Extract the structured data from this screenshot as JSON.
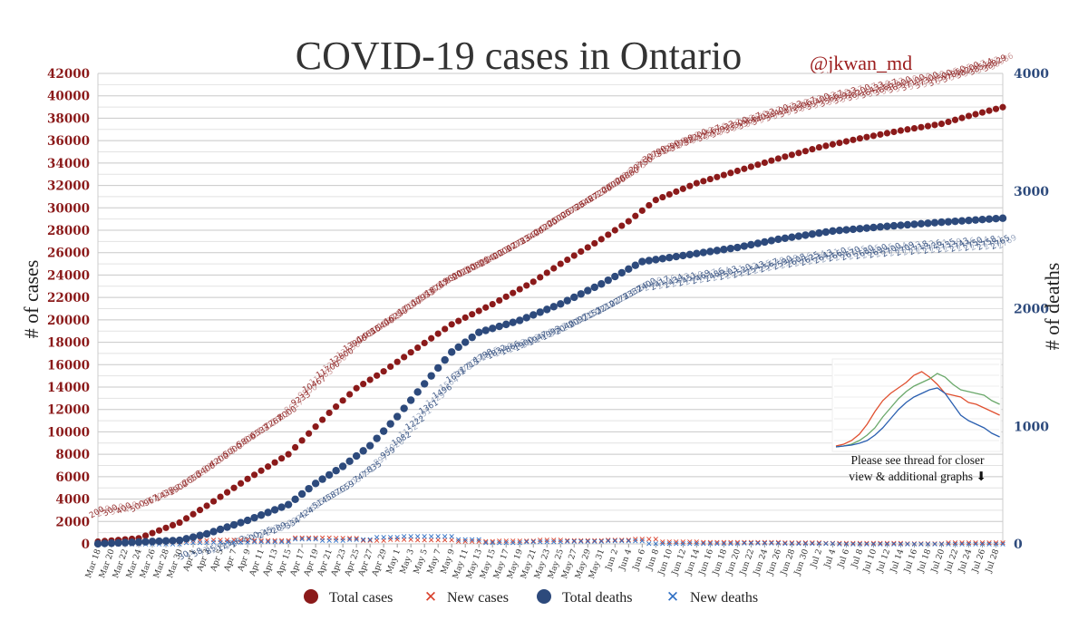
{
  "chart_data": {
    "type": "line",
    "title": "COVID-19 cases in Ontario",
    "handle": "@jkwan_md",
    "ylabel_left": "# of cases",
    "ylabel_right": "# of deaths",
    "ylim_left": [
      0,
      42000
    ],
    "ylim_right": [
      0,
      4000
    ],
    "yticks_left": [
      "0",
      "2000",
      "4000",
      "6000",
      "8000",
      "10000",
      "12000",
      "14000",
      "16000",
      "18000",
      "20000",
      "22000",
      "24000",
      "26000",
      "28000",
      "30000",
      "32000",
      "34000",
      "36000",
      "38000",
      "40000",
      "42000"
    ],
    "yticks_right": [
      "0",
      "1000",
      "2000",
      "3000",
      "4000"
    ],
    "x_start": "2020-03-18",
    "x_end": "2020-07-29",
    "xtick_labels": [
      "Mar 18",
      "Mar 20",
      "Mar 22",
      "Mar 24",
      "Mar 26",
      "Mar 28",
      "Mar 30",
      "Apr 1",
      "Apr 3",
      "Apr 5",
      "Apr 7",
      "Apr 9",
      "Apr 11",
      "Apr 13",
      "Apr 15",
      "Apr 17",
      "Apr 19",
      "Apr 21",
      "Apr 23",
      "Apr 25",
      "Apr 27",
      "Apr 29",
      "May 1",
      "May 3",
      "May 5",
      "May 7",
      "May 9",
      "May 11",
      "May 13",
      "May 15",
      "May 17",
      "May 19",
      "May 21",
      "May 23",
      "May 25",
      "May 27",
      "May 29",
      "May 31",
      "Jun 2",
      "Jun 4",
      "Jun 6",
      "Jun 8",
      "Jun 10",
      "Jun 12",
      "Jun 14",
      "Jun 16",
      "Jun 18",
      "Jun 20",
      "Jun 22",
      "Jun 24",
      "Jun 26",
      "Jun 28",
      "Jun 30",
      "Jul 2",
      "Jul 4",
      "Jul 6",
      "Jul 8",
      "Jul 10",
      "Jul 12",
      "Jul 14",
      "Jul 16",
      "Jul 18",
      "Jul 20",
      "Jul 22",
      "Jul 24",
      "Jul 26",
      "Jul 28"
    ],
    "grid": true,
    "legend_position": "bottom",
    "series": [
      {
        "name": "Total cases",
        "axis": "left",
        "color": "#8b1a1a",
        "marker": "circle",
        "points": [
          [
            "Mar 18",
            200
          ],
          [
            "Mar 24",
            500
          ],
          [
            "Mar 30",
            1900
          ],
          [
            "Apr 3",
            3400
          ],
          [
            "Apr 9",
            5800
          ],
          [
            "Apr 15",
            8000
          ],
          [
            "Apr 21",
            11700
          ],
          [
            "Apr 25",
            13900
          ],
          [
            "Apr 29",
            15400
          ],
          [
            "May 3",
            17100
          ],
          [
            "May 9",
            19600
          ],
          [
            "May 15",
            21400
          ],
          [
            "May 21",
            23400
          ],
          [
            "May 25",
            25000
          ],
          [
            "May 31",
            27200
          ],
          [
            "Jun 4",
            28800
          ],
          [
            "Jun 8",
            30700
          ],
          [
            "Jun 14",
            32200
          ],
          [
            "Jun 20",
            33300
          ],
          [
            "Jun 26",
            34400
          ],
          [
            "Jul 2",
            35400
          ],
          [
            "Jul 8",
            36200
          ],
          [
            "Jul 14",
            36900
          ],
          [
            "Jul 20",
            37500
          ],
          [
            "Jul 24",
            38200
          ],
          [
            "Jul 29",
            38986
          ]
        ]
      },
      {
        "name": "Total deaths",
        "axis": "right",
        "color": "#2d4a7c",
        "marker": "circle",
        "points": [
          [
            "Mar 18",
            1
          ],
          [
            "Mar 30",
            30
          ],
          [
            "Apr 3",
            85
          ],
          [
            "Apr 9",
            200
          ],
          [
            "Apr 15",
            334
          ],
          [
            "Apr 19",
            514
          ],
          [
            "Apr 23",
            659
          ],
          [
            "Apr 27",
            835
          ],
          [
            "May 1",
            1082
          ],
          [
            "May 5",
            1361
          ],
          [
            "May 9",
            1631
          ],
          [
            "May 13",
            1798
          ],
          [
            "May 19",
            1900
          ],
          [
            "May 25",
            2040
          ],
          [
            "May 31",
            2210
          ],
          [
            "Jun 6",
            2400
          ],
          [
            "Jun 12',",
            2477
          ],
          [
            "Jun 20",
            2520
          ],
          [
            "Jun 26",
            2590
          ],
          [
            "Jul 4",
            2660
          ],
          [
            "Jul 12",
            2700
          ],
          [
            "Jul 20",
            2735
          ],
          [
            "Jul 29",
            2769
          ]
        ]
      },
      {
        "name": "New cases",
        "axis": "left",
        "color": "#d9402b",
        "marker": "x",
        "values_approx": "100-600 per day"
      },
      {
        "name": "New deaths",
        "axis": "right",
        "color": "#2f6fc4",
        "marker": "x",
        "values_approx": "0-90 per day"
      }
    ],
    "labels_cases_visible": [
      "1",
      "2",
      "3",
      "4",
      "5",
      "6",
      "8",
      "9",
      "10578",
      "11184",
      "11735",
      "12245",
      "12879",
      "13519",
      "14432",
      "15381",
      "15728",
      "16187",
      "16608",
      "17119",
      "17553",
      "18722",
      "38986"
    ],
    "labels_deaths_visible": [
      "29",
      "334",
      "423",
      "514",
      "553",
      "622",
      "659",
      "713",
      "763",
      "835",
      "892",
      "951",
      "996",
      "1082",
      "1121",
      "1176",
      "1216",
      "1300",
      "1361",
      "1429",
      "1477",
      "1540",
      "1599",
      "1669",
      "2372",
      "2769"
    ],
    "annotation": [
      "Please see thread for closer",
      "view & additional graphs ⬇"
    ]
  }
}
